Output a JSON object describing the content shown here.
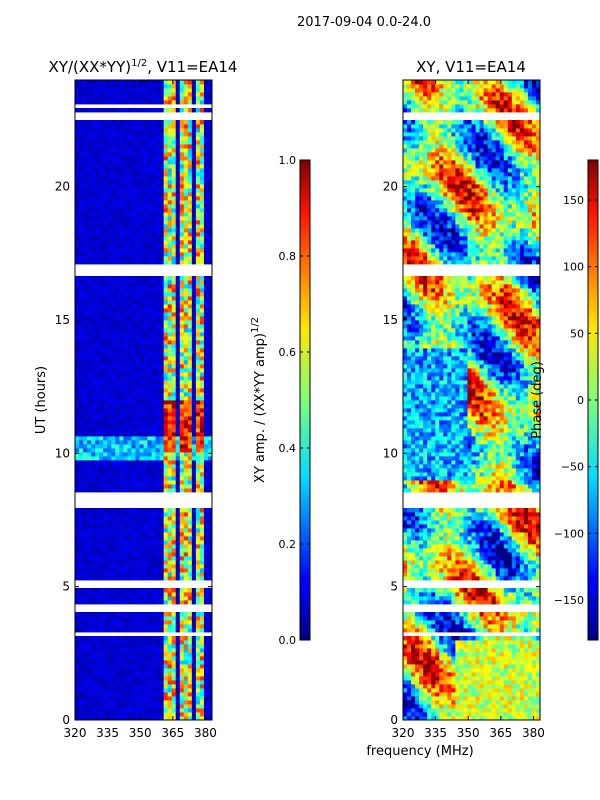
{
  "figure": {
    "suptitle": "2017-09-04 0.0-24.0",
    "xlabel": "frequency (MHz)"
  },
  "chart_data": [
    {
      "type": "heatmap",
      "title": "XY/(XX*YY)",
      "title_sup": "1/2",
      "title_rest": ", V11=EA14",
      "ylabel": "UT (hours)",
      "xlim": [
        320,
        383
      ],
      "ylim": [
        0,
        24
      ],
      "xticks": [
        320,
        335,
        350,
        365,
        380
      ],
      "yticks": [
        0,
        5,
        10,
        15,
        20
      ],
      "colorbar": {
        "label": "XY amp. / (XX*YY amp)",
        "label_sup": "1/2",
        "range": [
          0.0,
          1.0
        ],
        "ticks": [
          "0.0",
          "0.2",
          "0.4",
          "0.6",
          "0.8",
          "1.0"
        ],
        "colormap": "jet"
      },
      "flagged_bands_hours": [
        [
          22.55,
          22.75
        ],
        [
          22.95,
          23.15
        ],
        [
          16.6,
          17.1
        ],
        [
          7.9,
          8.6
        ],
        [
          5.0,
          5.3
        ],
        [
          4.1,
          4.4
        ],
        [
          3.2,
          3.35
        ]
      ],
      "bright_channels_MHz": [
        [
          360,
          364
        ],
        [
          364.5,
          367
        ],
        [
          368,
          373
        ],
        [
          375,
          377
        ],
        [
          378,
          380
        ]
      ]
    },
    {
      "type": "heatmap",
      "title": "XY, V11=EA14",
      "xlim": [
        320,
        383
      ],
      "ylim": [
        0,
        24
      ],
      "xticks": [
        320,
        335,
        350,
        365,
        380
      ],
      "yticks": [
        0,
        5,
        10,
        15,
        20
      ],
      "colorbar": {
        "label": "Phase (deg)",
        "range": [
          -180,
          180
        ],
        "ticks": [
          "−150",
          "−100",
          "−50",
          "0",
          "50",
          "100",
          "150"
        ],
        "colormap": "jet"
      },
      "flagged_bands_hours": [
        [
          22.55,
          22.75
        ],
        [
          16.6,
          17.1
        ],
        [
          7.9,
          8.6
        ],
        [
          5.0,
          5.3
        ],
        [
          4.1,
          4.4
        ],
        [
          3.2,
          3.35
        ]
      ]
    }
  ]
}
